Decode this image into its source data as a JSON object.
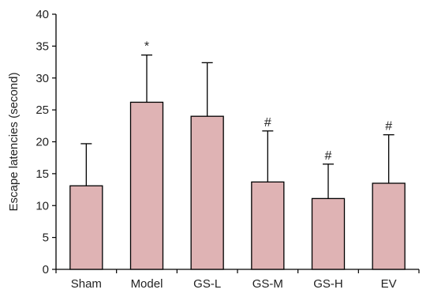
{
  "chart_data": {
    "type": "bar",
    "title": "",
    "xlabel": "",
    "ylabel": "Escape latencies (second)",
    "ylim": [
      0,
      40
    ],
    "yticks": [
      0,
      5,
      10,
      15,
      20,
      25,
      30,
      35,
      40
    ],
    "categories": [
      "Sham",
      "Model",
      "GS-L",
      "GS-M",
      "GS-H",
      "EV"
    ],
    "values": [
      13.1,
      26.2,
      24.0,
      13.7,
      11.1,
      13.5
    ],
    "error_plus": [
      6.6,
      7.4,
      8.4,
      8.0,
      5.4,
      7.6
    ],
    "annotations": [
      "",
      "*",
      "",
      "#",
      "#",
      "#"
    ],
    "grid": false,
    "legend": false,
    "bar_color": "#dfb3b4",
    "bar_edge_color": "#000000"
  }
}
